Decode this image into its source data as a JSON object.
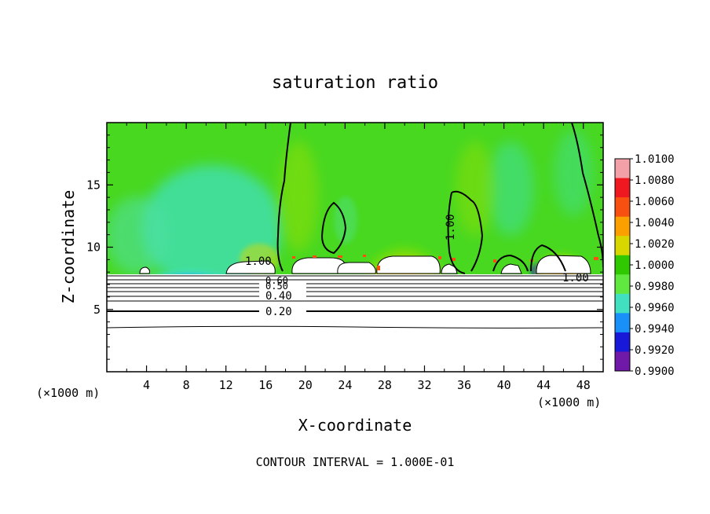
{
  "chart_data": {
    "type": "heatmap",
    "title": "saturation ratio",
    "xlabel": "X-coordinate",
    "ylabel": "Z-coordinate",
    "x_unit_left": "(×1000 m)",
    "x_unit_right": "(×1000 m)",
    "xlim": [
      0,
      50
    ],
    "ylim": [
      0,
      20
    ],
    "x_ticks": [
      4,
      8,
      12,
      16,
      20,
      24,
      28,
      32,
      36,
      40,
      44,
      48
    ],
    "y_ticks": [
      5,
      10,
      15
    ],
    "colorbar": {
      "ticks": [
        "1.0100",
        "1.0080",
        "1.0060",
        "1.0040",
        "1.0020",
        "1.0000",
        "0.9980",
        "0.9960",
        "0.9940",
        "0.9920",
        "0.9900"
      ],
      "colors": [
        "#f4a0a8",
        "#f01820",
        "#f85010",
        "#fca000",
        "#d8d800",
        "#30c800",
        "#60e840",
        "#40e0c0",
        "#1890f8",
        "#1818d8",
        "#7018a8"
      ]
    },
    "contour_labels": [
      {
        "text": "1.00",
        "x": 15,
        "z": 10.6
      },
      {
        "text": "0.60",
        "x": 17.8,
        "z": 7.6
      },
      {
        "text": "0.50",
        "x": 17.8,
        "z": 7.3
      },
      {
        "text": "0.40",
        "x": 17.6,
        "z": 6.3
      },
      {
        "text": "0.20",
        "x": 17.6,
        "z": 5.0
      },
      {
        "text": "1.00",
        "x": 34.2,
        "z": 11.6
      },
      {
        "text": "1.00",
        "x": 46.2,
        "z": 8.5
      }
    ],
    "footer": "CONTOUR INTERVAL = 1.000E-01"
  }
}
